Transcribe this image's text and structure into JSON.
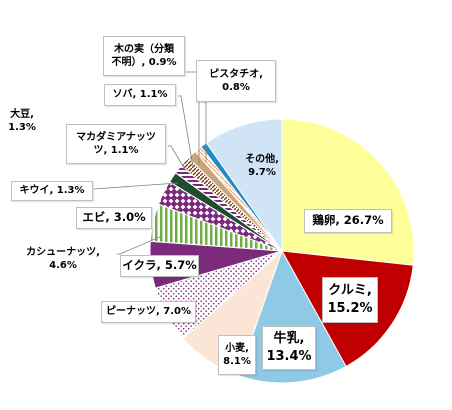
{
  "colors": {
    "egg": "#ffff99",
    "walnut": "#c00000",
    "milk": "#8ecae6",
    "wheat": "#fbe5d6",
    "peanut": "#7b2a7b",
    "ikura": "#7b2a7b",
    "cashew": "#70ad47",
    "shrimp": "#7b2a7b",
    "kiwi": "#1e4d2b",
    "macadamia": "#7b2a7b",
    "soybean": "#843c0c",
    "buckwheat": "#c6a77c",
    "nuts_unknown": "#f4b183",
    "pistachio": "#1f8cc8",
    "other": "#d0e4f5",
    "leader": "#7f7f7f"
  },
  "chart_data": {
    "type": "pie",
    "start": "12 o'clock",
    "direction": "clockwise",
    "slices": [
      {
        "key": "egg",
        "name": "鶏卵",
        "value": 26.7,
        "label": "26.7%"
      },
      {
        "key": "walnut",
        "name": "クルミ",
        "value": 15.2,
        "label": "15.2%"
      },
      {
        "key": "milk",
        "name": "牛乳",
        "value": 13.4,
        "label": "13.4%"
      },
      {
        "key": "wheat",
        "name": "小麦",
        "value": 8.1,
        "label": "8.1%"
      },
      {
        "key": "peanut",
        "name": "ピーナッツ",
        "value": 7.0,
        "label": "7.0%"
      },
      {
        "key": "ikura",
        "name": "イクラ",
        "value": 5.7,
        "label": "5.7%"
      },
      {
        "key": "cashew",
        "name": "カシューナッツ",
        "value": 4.6,
        "label": "4.6%"
      },
      {
        "key": "shrimp",
        "name": "エビ",
        "value": 3.0,
        "label": "3.0%"
      },
      {
        "key": "kiwi",
        "name": "キウイ",
        "value": 1.3,
        "label": "1.3%"
      },
      {
        "key": "macadamia",
        "name": "マカダミアナッツ",
        "value": 1.1,
        "label": "1.1%"
      },
      {
        "key": "soybean",
        "name": "大豆",
        "value": 1.3,
        "label": "1.3%"
      },
      {
        "key": "buckwheat",
        "name": "ソバ",
        "value": 1.1,
        "label": "1.1%"
      },
      {
        "key": "nuts_unknown",
        "name": "木の実（分類不明）",
        "value": 0.9,
        "label": "0.9%"
      },
      {
        "key": "pistachio",
        "name": "ピスタチオ",
        "value": 0.8,
        "label": "0.8%"
      },
      {
        "key": "other",
        "name": "その他",
        "value": 9.7,
        "label": "9.7%"
      }
    ]
  },
  "labels": {
    "egg": "鶏卵, 26.7%",
    "walnut_1": "クルミ,",
    "walnut_2": "15.2%",
    "milk_1": "牛乳,",
    "milk_2": "13.4%",
    "wheat_1": "小麦,",
    "wheat_2": "8.1%",
    "peanut": "ピーナッツ, 7.0%",
    "ikura": "イクラ, 5.7%",
    "cashew_1": "カシューナッツ,",
    "cashew_2": "4.6%",
    "shrimp": "エビ, 3.0%",
    "kiwi": "キウイ, 1.3%",
    "macadamia_1": "マカダミアナッツ",
    "macadamia_2": "ツ, 1.1%",
    "soybean_1": "大豆,",
    "soybean_2": "1.3%",
    "buckwheat": "ソバ, 1.1%",
    "nuts_unknown_1": "木の実（分類",
    "nuts_unknown_2": "不明）, 0.9%",
    "pistachio_1": "ピスタチオ,",
    "pistachio_2": "0.8%",
    "other_1": "その他,",
    "other_2": "9.7%"
  }
}
